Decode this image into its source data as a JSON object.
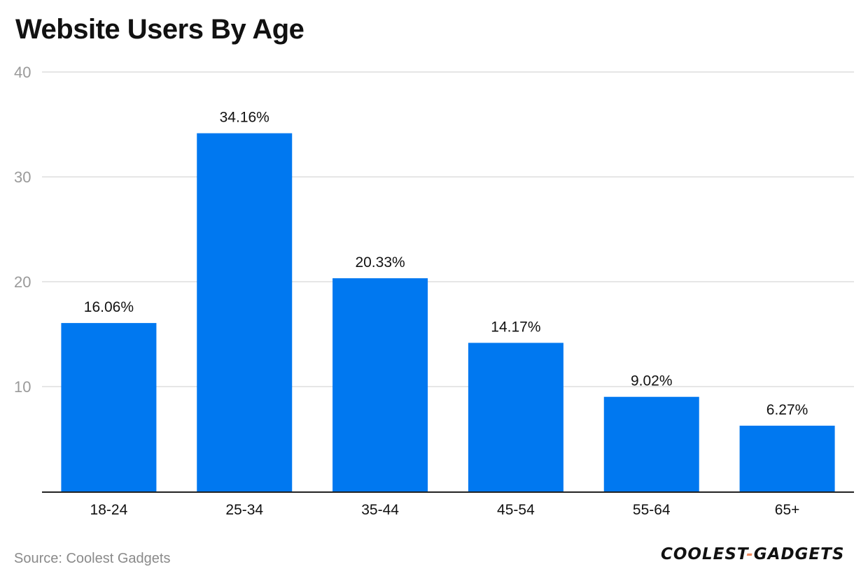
{
  "chart_data": {
    "type": "bar",
    "title": "Website Users By Age",
    "categories": [
      "18-24",
      "25-34",
      "35-44",
      "45-54",
      "55-64",
      "65+"
    ],
    "values": [
      16.06,
      34.16,
      20.33,
      14.17,
      9.02,
      6.27
    ],
    "value_labels": [
      "16.06%",
      "34.16%",
      "20.33%",
      "14.17%",
      "9.02%",
      "6.27%"
    ],
    "yticks": [
      10,
      20,
      30,
      40
    ],
    "ylim": [
      0,
      40
    ],
    "xlabel": "",
    "ylabel": "",
    "grid": true,
    "bar_color": "#0078f0"
  },
  "footer": {
    "source": "Source: Coolest Gadgets",
    "logo_part1": "COOLEST",
    "logo_sep": "-",
    "logo_part2": "GADGETS"
  }
}
